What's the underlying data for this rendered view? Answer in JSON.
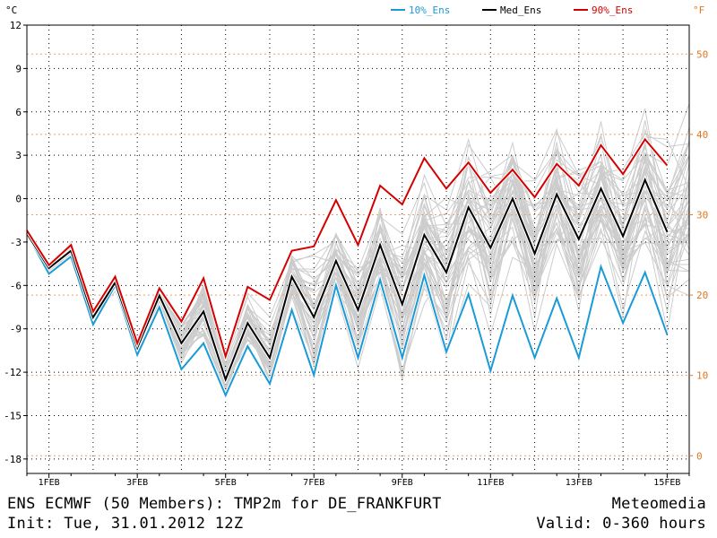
{
  "chart_data": {
    "type": "line",
    "units_left": "°C",
    "units_right": "°F",
    "legend": [
      {
        "label": "10%_Ens",
        "color": "#1a9ad6"
      },
      {
        "label": "Med_Ens",
        "color": "#000000"
      },
      {
        "label": "90%_Ens",
        "color": "#d40000"
      }
    ],
    "legend_position": "top-right",
    "x_ticks": [
      "1FEB",
      "3FEB",
      "5FEB",
      "7FEB",
      "9FEB",
      "11FEB",
      "13FEB",
      "15FEB"
    ],
    "x_tick_hours": [
      12,
      60,
      108,
      156,
      204,
      252,
      300,
      348
    ],
    "xlim_hours": [
      0,
      360
    ],
    "ylim_c": [
      -19,
      12
    ],
    "y_ticks_c": [
      12,
      9,
      6,
      3,
      0,
      -3,
      -6,
      -9,
      -12,
      -15,
      -18
    ],
    "y_ticks_f": [
      50,
      40,
      30,
      20,
      10,
      0
    ],
    "grid": true,
    "x_hours": [
      0,
      12,
      24,
      36,
      48,
      60,
      72,
      84,
      96,
      108,
      120,
      132,
      144,
      156,
      168,
      180,
      192,
      204,
      216,
      228,
      240,
      252,
      264,
      276,
      288,
      300,
      312,
      324,
      336,
      348,
      360
    ],
    "series": [
      {
        "name": "10%_Ens",
        "color": "#1a9ad6",
        "values": [
          -2.4,
          -5.2,
          -4.0,
          -8.7,
          -6.0,
          -10.8,
          -7.5,
          -11.8,
          -10.0,
          -13.6,
          -10.2,
          -12.8,
          -7.7,
          -12.2,
          -6.0,
          -11.0,
          -5.6,
          -11.0,
          -5.3,
          -10.6,
          -6.6,
          -11.9,
          -6.7,
          -11.0,
          -6.9,
          -11.0,
          -4.7,
          -8.6,
          -5.1,
          -9.4,
          null
        ]
      },
      {
        "name": "Med_Ens",
        "color": "#000000",
        "values": [
          -2.4,
          -4.8,
          -3.6,
          -8.2,
          -5.8,
          -10.3,
          -6.7,
          -10.0,
          -7.8,
          -12.5,
          -8.6,
          -11.0,
          -5.4,
          -8.2,
          -4.3,
          -7.7,
          -3.2,
          -7.3,
          -2.5,
          -5.1,
          -0.6,
          -3.4,
          0.0,
          -3.8,
          0.3,
          -2.8,
          0.7,
          -2.6,
          1.3,
          -2.3,
          null
        ]
      },
      {
        "name": "90%_Ens",
        "color": "#d40000",
        "values": [
          -2.2,
          -4.6,
          -3.2,
          -7.8,
          -5.4,
          -10.0,
          -6.2,
          -8.5,
          -5.5,
          -10.9,
          -6.1,
          -7.0,
          -3.6,
          -3.3,
          -0.1,
          -3.2,
          0.9,
          -0.4,
          2.8,
          0.7,
          2.5,
          0.4,
          2.0,
          0.1,
          2.4,
          0.9,
          3.7,
          1.7,
          4.1,
          2.3,
          null
        ]
      }
    ]
  },
  "footer": {
    "title": "ENS ECMWF (50 Members): TMP2m for DE_FRANKFURT",
    "init": "Init: Tue, 31.01.2012 12Z",
    "brand": "Meteomedia",
    "valid": "Valid: 0-360 hours"
  },
  "colors": {
    "member": "#cccccc",
    "grid": "#000000",
    "fahrenheit_grid": "#e8a070",
    "fahrenheit_text": "#e07820"
  }
}
